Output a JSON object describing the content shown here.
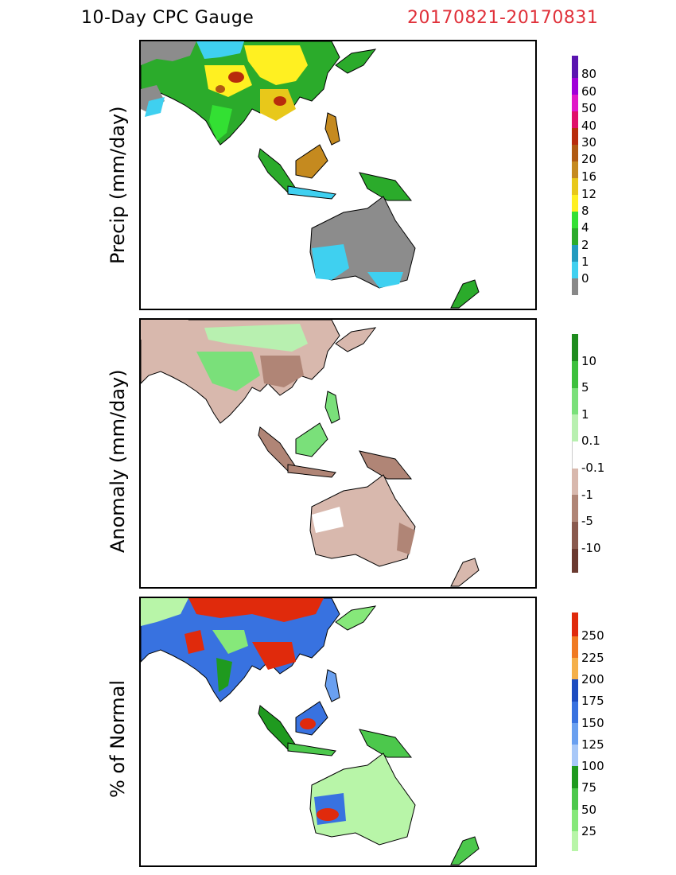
{
  "header": {
    "left_title": "10-Day CPC Gauge",
    "right_title": "20170821-20170831"
  },
  "panels": [
    {
      "id": "precip",
      "ylabel": "Precip (mm/day)",
      "colorbar": [
        {
          "label": "",
          "color": "#888888"
        },
        {
          "label": "0",
          "color": "#3fd0f0"
        },
        {
          "label": "1",
          "color": "#229bbf"
        },
        {
          "label": "2",
          "color": "#2bab2b"
        },
        {
          "label": "4",
          "color": "#33e033"
        },
        {
          "label": "8",
          "color": "#fff021"
        },
        {
          "label": "12",
          "color": "#e8c81a"
        },
        {
          "label": "16",
          "color": "#c58a1f"
        },
        {
          "label": "20",
          "color": "#b05a12"
        },
        {
          "label": "30",
          "color": "#b82c0c"
        },
        {
          "label": "40",
          "color": "#e0106a"
        },
        {
          "label": "50",
          "color": "#e018c8"
        },
        {
          "label": "60",
          "color": "#a000d8"
        },
        {
          "label": "80",
          "color": "#5a14b0"
        }
      ]
    },
    {
      "id": "anomaly",
      "ylabel": "Anomaly (mm/day)",
      "colorbar": [
        {
          "label": "",
          "color": "#6b3a30"
        },
        {
          "label": "-10",
          "color": "#8a5a4e"
        },
        {
          "label": "-5",
          "color": "#b08576"
        },
        {
          "label": "-1",
          "color": "#d8b8ad"
        },
        {
          "label": "-0.1",
          "color": "#ffffff"
        },
        {
          "label": "0.1",
          "color": "#b8f0b0"
        },
        {
          "label": "1",
          "color": "#7ae07a"
        },
        {
          "label": "5",
          "color": "#3cc03c"
        },
        {
          "label": "10",
          "color": "#1e8c1e"
        }
      ]
    },
    {
      "id": "percent",
      "ylabel": "% of Normal",
      "colorbar": [
        {
          "label": "",
          "color": "#b8f5a8"
        },
        {
          "label": "25",
          "color": "#86e87a"
        },
        {
          "label": "50",
          "color": "#4cc84c"
        },
        {
          "label": "75",
          "color": "#1f9a1f"
        },
        {
          "label": "100",
          "color": "#a8c8f8"
        },
        {
          "label": "125",
          "color": "#6aa0f0"
        },
        {
          "label": "150",
          "color": "#3872e0"
        },
        {
          "label": "175",
          "color": "#1c4cc0"
        },
        {
          "label": "200",
          "color": "#f5b04a"
        },
        {
          "label": "225",
          "color": "#f07a22"
        },
        {
          "label": "250",
          "color": "#e02a0c"
        }
      ]
    }
  ],
  "colors": {
    "land_gray": "#8c8c8c",
    "ocean": "#ffffff",
    "coast": "#000000"
  }
}
